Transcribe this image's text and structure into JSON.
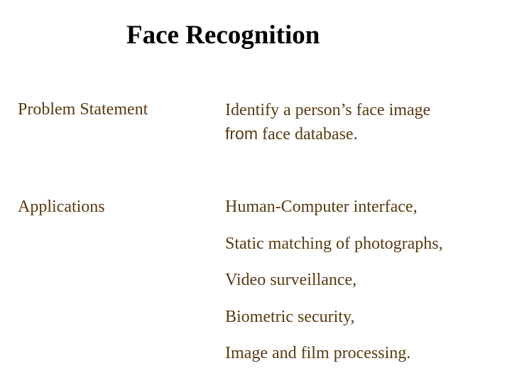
{
  "slide": {
    "title": "Face Recognition",
    "problem": {
      "label": "Problem Statement",
      "line1": "Identify a person’s face image",
      "line2_word": "from",
      "line2_rest": " face database."
    },
    "applications": {
      "label": "Applications",
      "items": [
        "Human-Computer interface,",
        "Static matching of photographs,",
        "Video surveillance,",
        "Biometric security,",
        "Image and film processing."
      ]
    }
  },
  "colors": {
    "title": "#000000",
    "body_text": "#5a3a10",
    "background": "#ffffff"
  }
}
